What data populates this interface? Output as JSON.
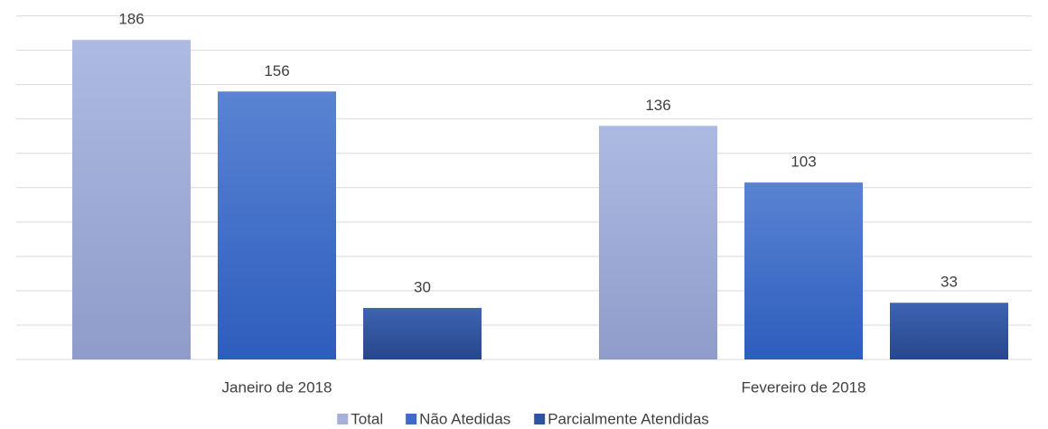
{
  "chart_data": {
    "type": "bar",
    "categories": [
      "Janeiro de 2018",
      "Fevereiro de 2018"
    ],
    "series": [
      {
        "name": "Total",
        "color": "#a3b1db",
        "values": [
          186,
          136
        ]
      },
      {
        "name": "Não Atedidas",
        "color": "#3d6acb",
        "values": [
          156,
          103
        ]
      },
      {
        "name": "Parcialmente Atendidas",
        "color": "#2f53a0",
        "values": [
          30,
          33
        ]
      }
    ],
    "ylim": [
      0,
      200
    ],
    "yticks": [
      0,
      20,
      40,
      60,
      80,
      100,
      120,
      140,
      160,
      180,
      200
    ],
    "grid": true
  }
}
